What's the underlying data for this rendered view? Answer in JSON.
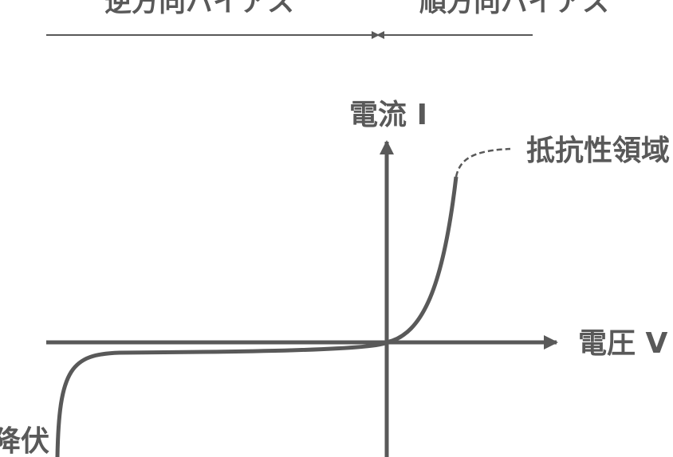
{
  "labels": {
    "reverse_bias": "逆方向バイアス",
    "forward_bias": "順方向バイアス",
    "current_axis": "電流 I",
    "voltage_axis": "電圧 V",
    "resistive_region": "抵抗性領域",
    "breakdown": "降伏"
  },
  "colors": {
    "line": "#595959",
    "background": "#ffffff"
  }
}
